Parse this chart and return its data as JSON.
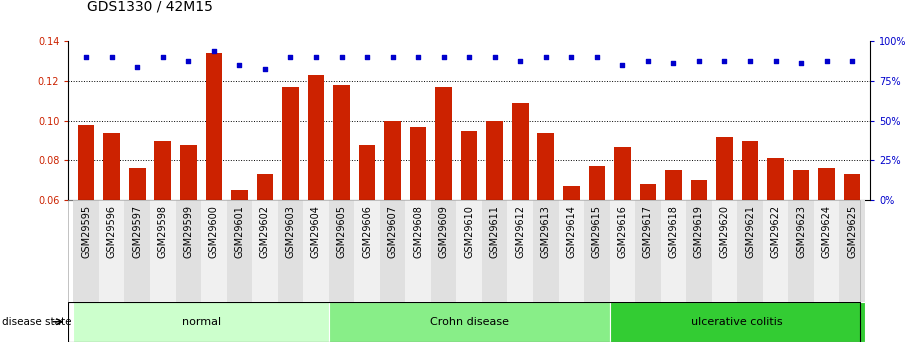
{
  "title": "GDS1330 / 42M15",
  "samples": [
    "GSM29595",
    "GSM29596",
    "GSM29597",
    "GSM29598",
    "GSM29599",
    "GSM29600",
    "GSM29601",
    "GSM29602",
    "GSM29603",
    "GSM29604",
    "GSM29605",
    "GSM29606",
    "GSM29607",
    "GSM29608",
    "GSM29609",
    "GSM29610",
    "GSM29611",
    "GSM29612",
    "GSM29613",
    "GSM29614",
    "GSM29615",
    "GSM29616",
    "GSM29617",
    "GSM29618",
    "GSM29619",
    "GSM29620",
    "GSM29621",
    "GSM29622",
    "GSM29623",
    "GSM29624",
    "GSM29625"
  ],
  "bar_values": [
    0.098,
    0.094,
    0.076,
    0.09,
    0.088,
    0.134,
    0.065,
    0.073,
    0.117,
    0.123,
    0.118,
    0.088,
    0.1,
    0.097,
    0.117,
    0.095,
    0.1,
    0.109,
    0.094,
    0.067,
    0.077,
    0.087,
    0.068,
    0.075,
    0.07,
    0.092,
    0.09,
    0.081,
    0.075,
    0.076,
    0.073
  ],
  "scatter_values": [
    0.132,
    0.132,
    0.127,
    0.132,
    0.13,
    0.135,
    0.128,
    0.126,
    0.132,
    0.132,
    0.132,
    0.132,
    0.132,
    0.132,
    0.132,
    0.132,
    0.132,
    0.13,
    0.132,
    0.132,
    0.132,
    0.128,
    0.13,
    0.129,
    0.13,
    0.13,
    0.13,
    0.13,
    0.129,
    0.13,
    0.13
  ],
  "groups": [
    {
      "label": "normal",
      "start": 0,
      "end": 10,
      "color": "#ccffcc"
    },
    {
      "label": "Crohn disease",
      "start": 10,
      "end": 21,
      "color": "#88ee88"
    },
    {
      "label": "ulcerative colitis",
      "start": 21,
      "end": 31,
      "color": "#33cc33"
    }
  ],
  "bar_color": "#cc2200",
  "scatter_color": "#0000cc",
  "ylim_left": [
    0.06,
    0.14
  ],
  "ylim_right": [
    0,
    100
  ],
  "yticks_left": [
    0.06,
    0.08,
    0.1,
    0.12,
    0.14
  ],
  "yticks_right": [
    0,
    25,
    50,
    75,
    100
  ],
  "grid_values": [
    0.08,
    0.1,
    0.12
  ],
  "background_color": "#ffffff",
  "title_fontsize": 10,
  "tick_fontsize": 7,
  "label_fontsize": 8
}
